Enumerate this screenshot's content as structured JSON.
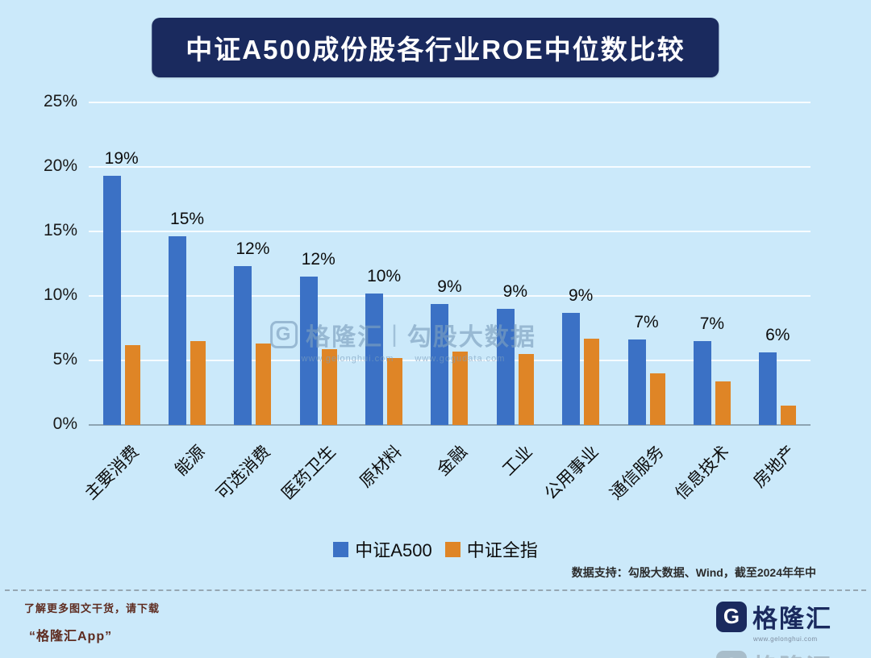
{
  "title": "中证A500成份股各行业ROE中位数比较",
  "colors": {
    "background": "#cbe9fa",
    "banner": "#1a2a5e",
    "series_blue": "#3b71c5",
    "series_orange": "#df8526"
  },
  "chart_data": {
    "type": "bar",
    "title": "中证A500成份股各行业ROE中位数比较",
    "categories": [
      "主要消费",
      "能源",
      "可选消费",
      "医药卫生",
      "原材料",
      "金融",
      "工业",
      "公用事业",
      "通信服务",
      "信息技术",
      "房地产"
    ],
    "series": [
      {
        "name": "中证A500",
        "color": "#3b71c5",
        "values": [
          19.3,
          14.6,
          12.3,
          11.5,
          10.2,
          9.4,
          9.0,
          8.7,
          6.6,
          6.5,
          5.6
        ],
        "labels": [
          "19%",
          "15%",
          "12%",
          "12%",
          "10%",
          "9%",
          "9%",
          "9%",
          "7%",
          "7%",
          "6%"
        ]
      },
      {
        "name": "中证全指",
        "color": "#df8526",
        "values": [
          6.2,
          6.5,
          6.3,
          5.9,
          5.2,
          5.7,
          5.5,
          6.7,
          4.0,
          3.4,
          1.5
        ]
      }
    ],
    "xlabel": "",
    "ylabel": "",
    "ylim": [
      0,
      25
    ],
    "yticks": [
      0,
      5,
      10,
      15,
      20,
      25
    ],
    "ytick_suffix": "%",
    "grid": true,
    "legend_position": "bottom"
  },
  "watermark": {
    "brand": "格隆汇",
    "divider": "|",
    "text": "勾股大数据",
    "url1": "www.gelonghui.com",
    "url2": "www.gogudata.com"
  },
  "source_note": "数据支持：勾股大数据、Wind，截至2024年年中",
  "footer": {
    "line1": "了解更多图文干货，请下载",
    "line2": "“格隆汇App”",
    "brand": "格隆汇",
    "brand_icon_letter": "G",
    "brand_url": "www.gelonghui.com"
  }
}
